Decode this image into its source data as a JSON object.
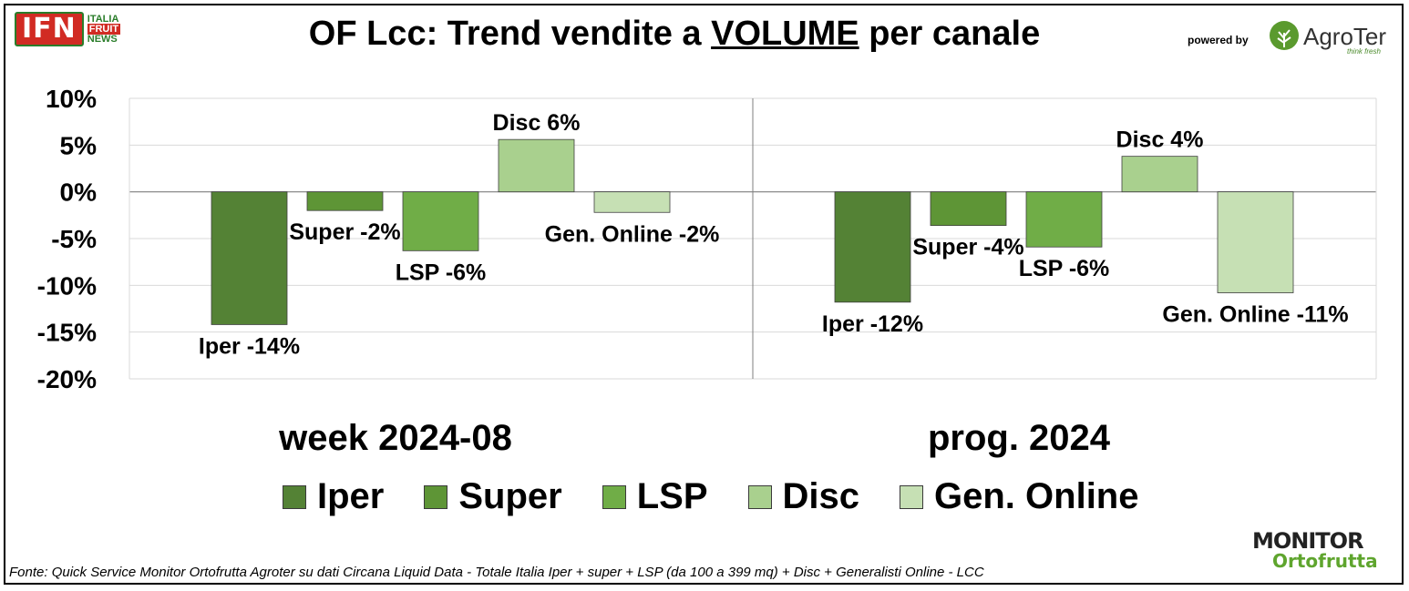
{
  "header": {
    "title_prefix": "OF Lcc: Trend vendite a ",
    "title_underlined": "VOLUME",
    "title_suffix": " per canale",
    "powered_by": "powered by",
    "agroter_name": "AgroTer",
    "agroter_tagline": "think fresh",
    "ifn_mark": "IFN",
    "ifn_word1": "ITALIA",
    "ifn_word2": "FRUIT",
    "ifn_word3": "NEWS"
  },
  "footer": {
    "source": "Fonte: Quick Service Monitor Ortofrutta Agroter su dati Circana Liquid Data - Totale Italia Iper + super + LSP (da 100 a 399 mq) + Disc + Generalisti Online - LCC",
    "monitor_word1": "MONITOR",
    "monitor_word2": "Ortofrutta"
  },
  "chart_data": {
    "type": "bar",
    "title": "OF Lcc: Trend vendite a VOLUME per canale",
    "ylim": [
      -20,
      10
    ],
    "yticks": [
      10,
      5,
      0,
      -5,
      -10,
      -15,
      -20
    ],
    "ytick_labels": [
      "10%",
      "5%",
      "0%",
      "-5%",
      "-10%",
      "-15%",
      "-20%"
    ],
    "grid": true,
    "legend_position": "bottom",
    "categories": [
      "week 2024-08",
      "prog. 2024"
    ],
    "series": [
      {
        "name": "Iper",
        "color": "#548235",
        "values": [
          -14.2,
          -11.8
        ],
        "labels": [
          "Iper -14%",
          "Iper -12%"
        ]
      },
      {
        "name": "Super",
        "color": "#5e9536",
        "values": [
          -2.0,
          -3.6
        ],
        "labels": [
          "Super -2%",
          "Super -4%"
        ]
      },
      {
        "name": "LSP",
        "color": "#70ad47",
        "values": [
          -6.3,
          -5.9
        ],
        "labels": [
          "LSP -6%",
          "LSP -6%"
        ]
      },
      {
        "name": "Disc",
        "color": "#a9d08e",
        "values": [
          5.6,
          3.8
        ],
        "labels": [
          "Disc 6%",
          "Disc 4%"
        ]
      },
      {
        "name": "Gen. Online",
        "color": "#c6e0b4",
        "values": [
          -2.2,
          -10.8
        ],
        "labels": [
          "Gen. Online -2%",
          "Gen. Online -11%"
        ]
      }
    ]
  }
}
